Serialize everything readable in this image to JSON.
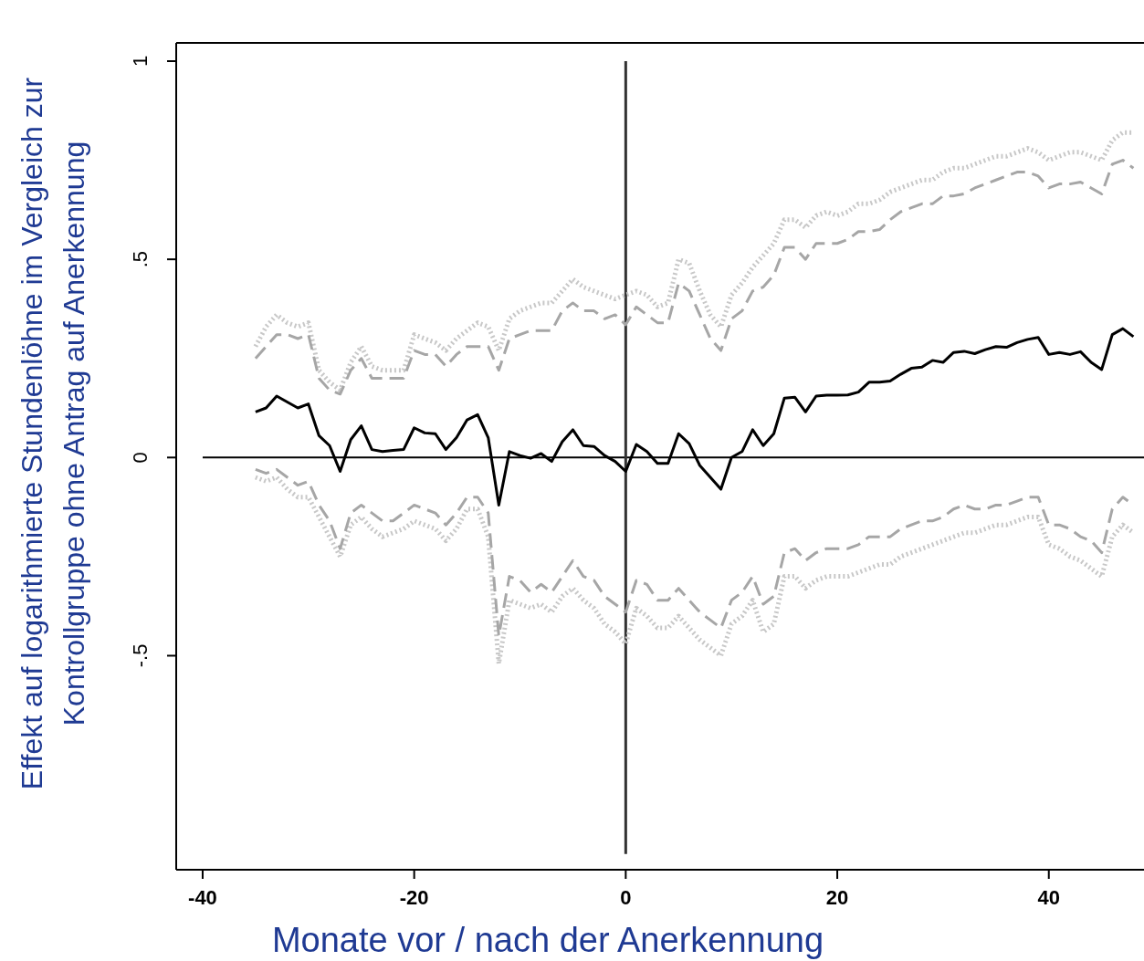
{
  "chart_data": {
    "type": "line",
    "xlabel": "Monate vor / nach der Anerkennung",
    "ylabel": "Effekt auf logarithmierte Stundenlöhne im Vergleich zur\nKontrollgruppe ohne Antrag auf Anerkennung",
    "x": [
      -35,
      -34,
      -33,
      -32,
      -31,
      -30,
      -29,
      -28,
      -27,
      -26,
      -25,
      -24,
      -23,
      -22,
      -21,
      -20,
      -19,
      -18,
      -17,
      -16,
      -15,
      -14,
      -13,
      -12,
      -11,
      -10,
      -9,
      -8,
      -7,
      -6,
      -5,
      -4,
      -3,
      -2,
      -1,
      0,
      1,
      2,
      3,
      4,
      5,
      6,
      7,
      8,
      9,
      10,
      11,
      12,
      13,
      14,
      15,
      16,
      17,
      18,
      19,
      20,
      21,
      22,
      23,
      24,
      25,
      26,
      27,
      28,
      29,
      30,
      31,
      32,
      33,
      34,
      35,
      36,
      37,
      38,
      39,
      40,
      41,
      42,
      43,
      44,
      45,
      46,
      47,
      48
    ],
    "series": [
      {
        "color": "#000000",
        "line_style": "solid",
        "values": [
          0.115,
          0.125,
          0.155,
          0.14,
          0.125,
          0.135,
          0.055,
          0.03,
          -0.035,
          0.045,
          0.08,
          0.02,
          0.015,
          0.018,
          0.02,
          0.075,
          0.062,
          0.06,
          0.02,
          0.05,
          0.095,
          0.108,
          0.05,
          -0.12,
          0.015,
          0.005,
          -0.002,
          0.01,
          -0.01,
          0.04,
          0.07,
          0.03,
          0.028,
          0.005,
          -0.01,
          -0.035,
          0.033,
          0.015,
          -0.015,
          -0.015,
          0.06,
          0.035,
          -0.02,
          -0.05,
          -0.08,
          0.0,
          0.015,
          0.07,
          0.03,
          0.06,
          0.15,
          0.152,
          0.115,
          0.155,
          0.157,
          0.157,
          0.158,
          0.165,
          0.19,
          0.19,
          0.193,
          0.21,
          0.225,
          0.228,
          0.245,
          0.24,
          0.265,
          0.268,
          0.262,
          0.272,
          0.28,
          0.278,
          0.29,
          0.298,
          0.303,
          0.26,
          0.265,
          0.26,
          0.267,
          0.24,
          0.222,
          0.31,
          0.325,
          0.305
        ]
      },
      {
        "color": "#a6a6a6",
        "line_style": "dashed",
        "values": [
          0.25,
          0.28,
          0.31,
          0.31,
          0.3,
          0.31,
          0.2,
          0.17,
          0.16,
          0.22,
          0.25,
          0.2,
          0.2,
          0.2,
          0.2,
          0.27,
          0.26,
          0.26,
          0.23,
          0.26,
          0.28,
          0.28,
          0.28,
          0.22,
          0.3,
          0.31,
          0.32,
          0.32,
          0.32,
          0.37,
          0.39,
          0.37,
          0.37,
          0.35,
          0.36,
          0.335,
          0.38,
          0.36,
          0.34,
          0.34,
          0.44,
          0.42,
          0.36,
          0.3,
          0.27,
          0.35,
          0.37,
          0.42,
          0.43,
          0.46,
          0.53,
          0.53,
          0.5,
          0.54,
          0.54,
          0.54,
          0.55,
          0.57,
          0.57,
          0.575,
          0.6,
          0.62,
          0.63,
          0.64,
          0.64,
          0.66,
          0.66,
          0.665,
          0.68,
          0.69,
          0.7,
          0.71,
          0.72,
          0.72,
          0.71,
          0.68,
          0.69,
          0.69,
          0.695,
          0.68,
          0.665,
          0.74,
          0.75,
          0.73
        ]
      },
      {
        "color": "#a6a6a6",
        "line_style": "dashed",
        "values": [
          -0.03,
          -0.04,
          -0.03,
          -0.05,
          -0.07,
          -0.06,
          -0.12,
          -0.16,
          -0.23,
          -0.14,
          -0.12,
          -0.14,
          -0.16,
          -0.16,
          -0.14,
          -0.12,
          -0.13,
          -0.14,
          -0.17,
          -0.14,
          -0.1,
          -0.1,
          -0.14,
          -0.45,
          -0.3,
          -0.31,
          -0.34,
          -0.32,
          -0.34,
          -0.3,
          -0.26,
          -0.3,
          -0.31,
          -0.35,
          -0.37,
          -0.39,
          -0.31,
          -0.32,
          -0.36,
          -0.36,
          -0.33,
          -0.36,
          -0.39,
          -0.41,
          -0.43,
          -0.36,
          -0.34,
          -0.3,
          -0.37,
          -0.35,
          -0.24,
          -0.23,
          -0.26,
          -0.24,
          -0.23,
          -0.23,
          -0.23,
          -0.22,
          -0.2,
          -0.2,
          -0.2,
          -0.18,
          -0.17,
          -0.16,
          -0.16,
          -0.15,
          -0.13,
          -0.12,
          -0.13,
          -0.13,
          -0.12,
          -0.12,
          -0.11,
          -0.1,
          -0.1,
          -0.17,
          -0.17,
          -0.18,
          -0.2,
          -0.21,
          -0.24,
          -0.13,
          -0.1,
          -0.12
        ]
      },
      {
        "color": "#c8c8c8",
        "line_style": "dotted",
        "values": [
          0.28,
          0.33,
          0.36,
          0.34,
          0.33,
          0.34,
          0.22,
          0.19,
          0.17,
          0.24,
          0.28,
          0.23,
          0.22,
          0.22,
          0.22,
          0.31,
          0.3,
          0.29,
          0.27,
          0.3,
          0.32,
          0.34,
          0.33,
          0.27,
          0.35,
          0.37,
          0.38,
          0.39,
          0.39,
          0.42,
          0.45,
          0.43,
          0.42,
          0.41,
          0.4,
          0.41,
          0.42,
          0.41,
          0.38,
          0.39,
          0.5,
          0.49,
          0.42,
          0.36,
          0.33,
          0.41,
          0.44,
          0.48,
          0.51,
          0.54,
          0.6,
          0.6,
          0.58,
          0.61,
          0.62,
          0.61,
          0.62,
          0.64,
          0.64,
          0.65,
          0.67,
          0.68,
          0.69,
          0.7,
          0.7,
          0.72,
          0.73,
          0.73,
          0.74,
          0.75,
          0.76,
          0.76,
          0.77,
          0.78,
          0.77,
          0.75,
          0.76,
          0.77,
          0.77,
          0.76,
          0.75,
          0.8,
          0.82,
          0.82
        ]
      },
      {
        "color": "#c8c8c8",
        "line_style": "dotted",
        "values": [
          -0.05,
          -0.06,
          -0.05,
          -0.08,
          -0.1,
          -0.1,
          -0.15,
          -0.2,
          -0.25,
          -0.17,
          -0.15,
          -0.18,
          -0.2,
          -0.19,
          -0.18,
          -0.16,
          -0.17,
          -0.18,
          -0.21,
          -0.18,
          -0.13,
          -0.13,
          -0.2,
          -0.52,
          -0.36,
          -0.37,
          -0.38,
          -0.37,
          -0.39,
          -0.35,
          -0.33,
          -0.36,
          -0.38,
          -0.42,
          -0.44,
          -0.47,
          -0.38,
          -0.4,
          -0.43,
          -0.43,
          -0.4,
          -0.43,
          -0.46,
          -0.48,
          -0.5,
          -0.42,
          -0.4,
          -0.36,
          -0.44,
          -0.42,
          -0.3,
          -0.3,
          -0.33,
          -0.31,
          -0.3,
          -0.3,
          -0.3,
          -0.29,
          -0.28,
          -0.27,
          -0.27,
          -0.25,
          -0.24,
          -0.23,
          -0.22,
          -0.21,
          -0.2,
          -0.19,
          -0.19,
          -0.18,
          -0.17,
          -0.17,
          -0.16,
          -0.15,
          -0.15,
          -0.22,
          -0.23,
          -0.25,
          -0.26,
          -0.28,
          -0.3,
          -0.2,
          -0.17,
          -0.19
        ]
      }
    ],
    "xlim": [
      -42.5,
      49
    ],
    "xticks": [
      -40,
      -20,
      0,
      20,
      40
    ],
    "ylim": [
      -1.04,
      1.046
    ],
    "yticks": [
      {
        "value": -0.5,
        "label": "-.5"
      },
      0,
      {
        "value": 0.5,
        "label": ".5"
      },
      1
    ],
    "ref_lines": [
      {
        "axis": "y",
        "value": 0,
        "color": "#000000"
      },
      {
        "axis": "x",
        "value": 0,
        "color": "#333333"
      }
    ],
    "grid": false
  }
}
